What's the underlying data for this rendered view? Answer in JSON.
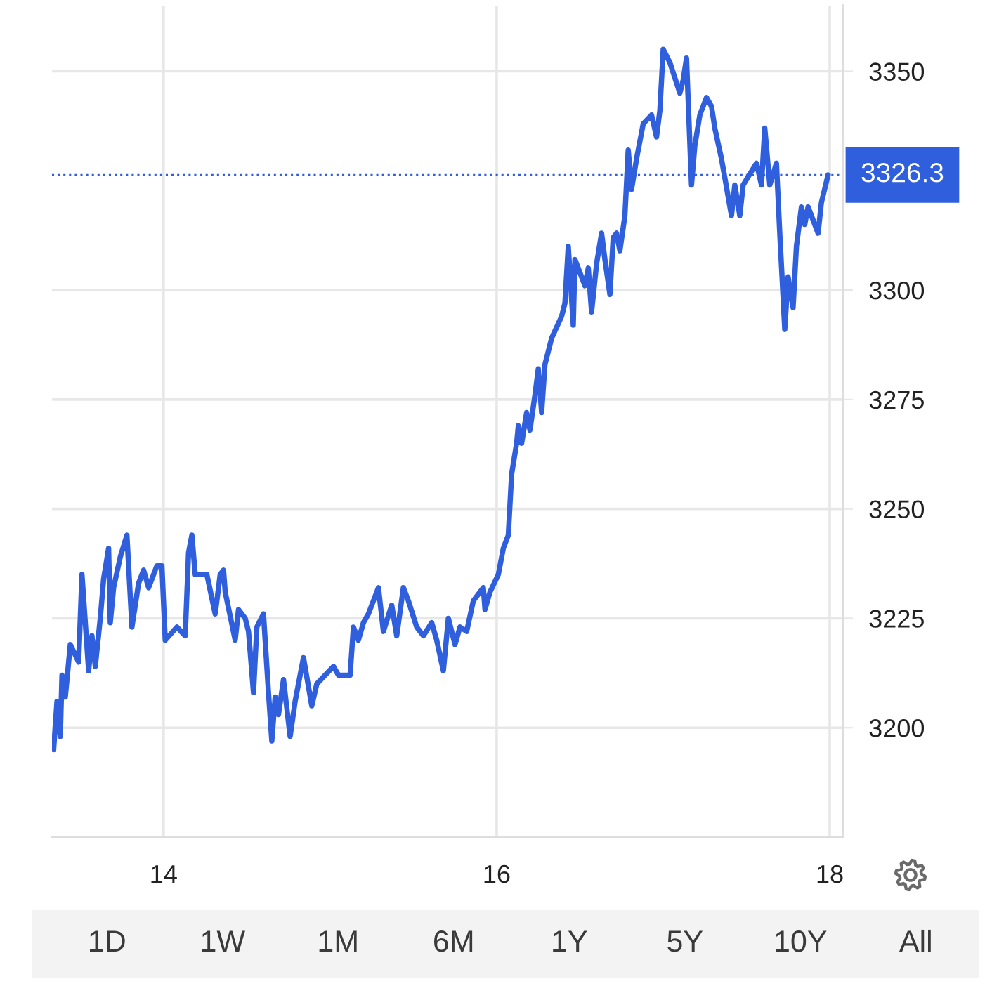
{
  "chart_data": {
    "type": "line",
    "x": [
      13.34,
      13.36,
      13.38,
      13.39,
      13.41,
      13.44,
      13.49,
      13.51,
      13.55,
      13.57,
      13.59,
      13.62,
      13.64,
      13.67,
      13.68,
      13.7,
      13.74,
      13.78,
      13.81,
      13.85,
      13.88,
      13.91,
      13.96,
      13.99,
      14.01,
      14.08,
      14.13,
      14.15,
      14.17,
      14.19,
      14.26,
      14.31,
      14.34,
      14.36,
      14.37,
      14.43,
      14.45,
      14.49,
      14.51,
      14.54,
      14.56,
      14.6,
      14.63,
      14.65,
      14.67,
      14.69,
      14.72,
      14.76,
      14.79,
      14.84,
      14.89,
      14.92,
      15.02,
      15.05,
      15.12,
      15.14,
      15.17,
      15.2,
      15.23,
      15.27,
      15.29,
      15.32,
      15.37,
      15.4,
      15.44,
      15.47,
      15.52,
      15.56,
      15.61,
      15.64,
      15.68,
      15.71,
      15.75,
      15.78,
      15.82,
      15.86,
      15.92,
      15.93,
      15.96,
      16.01,
      16.04,
      16.07,
      16.09,
      16.12,
      16.13,
      16.15,
      16.18,
      16.2,
      16.23,
      16.25,
      16.27,
      16.29,
      16.33,
      16.39,
      16.41,
      16.43,
      16.46,
      16.47,
      16.53,
      16.55,
      16.57,
      16.6,
      16.63,
      16.65,
      16.68,
      16.7,
      16.72,
      16.74,
      16.77,
      16.79,
      16.81,
      16.84,
      16.88,
      16.93,
      16.96,
      16.98,
      17.0,
      17.04,
      17.1,
      17.12,
      17.14,
      17.17,
      17.19,
      17.22,
      17.26,
      17.29,
      17.31,
      17.35,
      17.41,
      17.43,
      17.46,
      17.48,
      17.56,
      17.59,
      17.61,
      17.64,
      17.68,
      17.7,
      17.73,
      17.75,
      17.78,
      17.8,
      17.83,
      17.85,
      17.87,
      17.93,
      17.95,
      17.99
    ],
    "series": [
      {
        "color": "#2f5fdd",
        "values": [
          3195,
          3206,
          3198,
          3212,
          3207,
          3219,
          3215,
          3235,
          3213,
          3221,
          3214,
          3225,
          3234,
          3241,
          3224,
          3232,
          3239,
          3244,
          3223,
          3233,
          3236,
          3232,
          3237,
          3237,
          3220,
          3223,
          3221,
          3240,
          3244,
          3235,
          3235,
          3226,
          3235,
          3236,
          3231,
          3220,
          3227,
          3225,
          3222,
          3208,
          3223,
          3226,
          3208,
          3197,
          3207,
          3203,
          3211,
          3198,
          3206,
          3216,
          3205,
          3210,
          3214,
          3212,
          3212,
          3223,
          3220,
          3224,
          3226,
          3230,
          3232,
          3222,
          3228,
          3221,
          3232,
          3229,
          3223,
          3221,
          3224,
          3220,
          3213,
          3225,
          3219,
          3223,
          3222,
          3229,
          3232,
          3227,
          3231,
          3235,
          3241,
          3244,
          3258,
          3265,
          3269,
          3265,
          3272,
          3268,
          3276,
          3282,
          3272,
          3283,
          3289,
          3294,
          3297,
          3310,
          3292,
          3307,
          3301,
          3305,
          3295,
          3306,
          3313,
          3307,
          3299,
          3312,
          3313,
          3309,
          3317,
          3332,
          3323,
          3330,
          3338,
          3340,
          3335,
          3341,
          3355,
          3352,
          3345,
          3348,
          3353,
          3324,
          3333,
          3340,
          3344,
          3342,
          3337,
          3330,
          3317,
          3324,
          3317,
          3324,
          3329,
          3324,
          3337,
          3324,
          3329,
          3313,
          3291,
          3303,
          3296,
          3310,
          3319,
          3315,
          3319,
          3313,
          3320,
          3326.3
        ]
      }
    ],
    "xlim": [
      13.33,
      18.08
    ],
    "xticks": [
      14,
      16,
      18
    ],
    "ylim": [
      3175,
      3365
    ],
    "yticks": [
      3200,
      3225,
      3250,
      3275,
      3300,
      3350
    ],
    "grid": true,
    "line_style": "solid",
    "ref_lines": [
      {
        "axis": "y",
        "value": 3326.3,
        "label": "3326.3",
        "color": "#2f5fdd",
        "line_style": "dotted"
      }
    ],
    "annotations": [
      "1D",
      "1W",
      "1M",
      "6M",
      "1Y",
      "5Y",
      "10Y",
      "All"
    ]
  }
}
